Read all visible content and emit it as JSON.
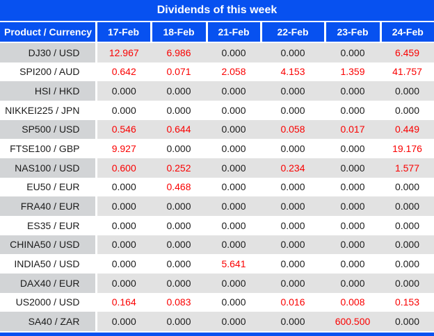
{
  "title": "Dividends of this week",
  "columns": {
    "product_header": "Product / Currency",
    "dates": [
      "17-Feb",
      "18-Feb",
      "21-Feb",
      "22-Feb",
      "23-Feb",
      "24-Feb"
    ]
  },
  "rows": [
    {
      "product": "DJ30 / USD",
      "values": [
        "12.967",
        "6.986",
        "0.000",
        "0.000",
        "0.000",
        "6.459"
      ]
    },
    {
      "product": "SPI200 / AUD",
      "values": [
        "0.642",
        "0.071",
        "2.058",
        "4.153",
        "1.359",
        "41.757"
      ]
    },
    {
      "product": "HSI / HKD",
      "values": [
        "0.000",
        "0.000",
        "0.000",
        "0.000",
        "0.000",
        "0.000"
      ]
    },
    {
      "product": "NIKKEI225 / JPN",
      "values": [
        "0.000",
        "0.000",
        "0.000",
        "0.000",
        "0.000",
        "0.000"
      ]
    },
    {
      "product": "SP500 / USD",
      "values": [
        "0.546",
        "0.644",
        "0.000",
        "0.058",
        "0.017",
        "0.449"
      ]
    },
    {
      "product": "FTSE100 / GBP",
      "values": [
        "9.927",
        "0.000",
        "0.000",
        "0.000",
        "0.000",
        "19.176"
      ]
    },
    {
      "product": "NAS100 / USD",
      "values": [
        "0.600",
        "0.252",
        "0.000",
        "0.234",
        "0.000",
        "1.577"
      ]
    },
    {
      "product": "EU50 / EUR",
      "values": [
        "0.000",
        "0.468",
        "0.000",
        "0.000",
        "0.000",
        "0.000"
      ]
    },
    {
      "product": "FRA40 / EUR",
      "values": [
        "0.000",
        "0.000",
        "0.000",
        "0.000",
        "0.000",
        "0.000"
      ]
    },
    {
      "product": "ES35 / EUR",
      "values": [
        "0.000",
        "0.000",
        "0.000",
        "0.000",
        "0.000",
        "0.000"
      ]
    },
    {
      "product": "CHINA50 / USD",
      "values": [
        "0.000",
        "0.000",
        "0.000",
        "0.000",
        "0.000",
        "0.000"
      ]
    },
    {
      "product": "INDIA50 / USD",
      "values": [
        "0.000",
        "0.000",
        "5.641",
        "0.000",
        "0.000",
        "0.000"
      ]
    },
    {
      "product": "DAX40 / EUR",
      "values": [
        "0.000",
        "0.000",
        "0.000",
        "0.000",
        "0.000",
        "0.000"
      ]
    },
    {
      "product": "US2000 / USD",
      "values": [
        "0.164",
        "0.083",
        "0.000",
        "0.016",
        "0.008",
        "0.153"
      ]
    },
    {
      "product": "SA40 / ZAR",
      "values": [
        "0.000",
        "0.000",
        "0.000",
        "0.000",
        "600.500",
        "0.000"
      ]
    }
  ],
  "colors": {
    "header_blue": "#0751f0",
    "row_gray": "#e2e2e2",
    "product_gray": "#d2d4d6",
    "nonzero_red": "#fa0000",
    "zero_black": "#1b1b1b",
    "header_text": "#ffffff"
  },
  "zero_value": "0.000"
}
